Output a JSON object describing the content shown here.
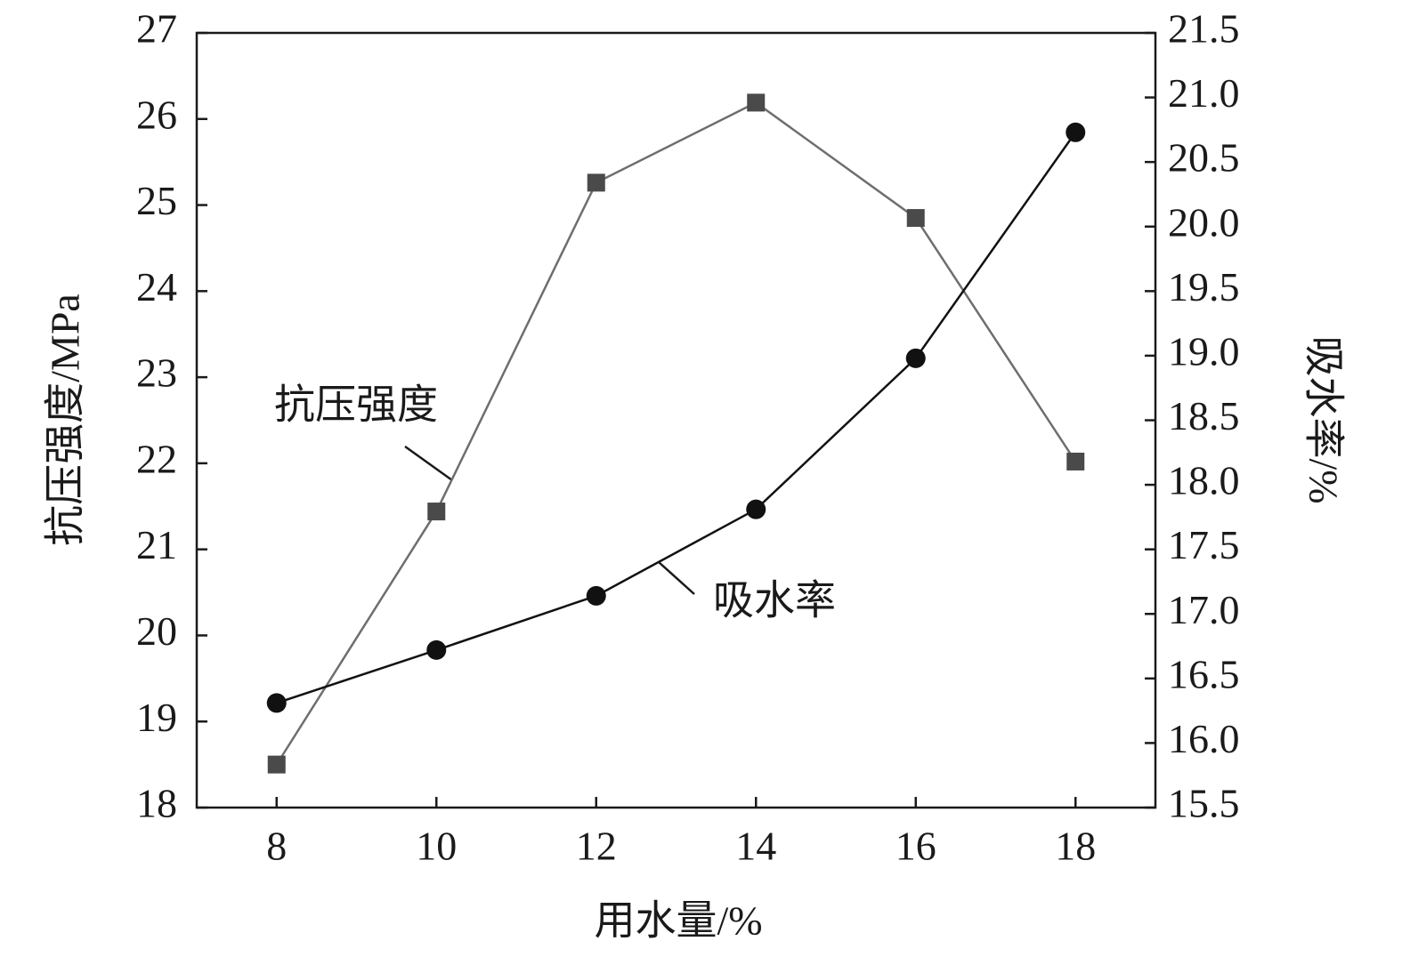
{
  "chart_data": {
    "type": "line",
    "x_label": "用水量/%",
    "y_label": "抗压强度/MPa",
    "y2_label": "吸水率/%",
    "x": [
      8,
      10,
      12,
      14,
      16,
      18
    ],
    "xlim": [
      7,
      19
    ],
    "xticks": [
      8,
      10,
      12,
      14,
      16,
      18
    ],
    "ylim": [
      18,
      27
    ],
    "yticks": [
      18,
      19,
      20,
      21,
      22,
      23,
      24,
      25,
      26,
      27
    ],
    "y2lim": [
      15.5,
      21.5
    ],
    "y2ticks": [
      15.5,
      {
        "value": 16,
        "label": "16.0"
      },
      16.5,
      {
        "value": 17,
        "label": "17.0"
      },
      17.5,
      {
        "value": 18,
        "label": "18.0"
      },
      18.5,
      {
        "value": 19,
        "label": "19.0"
      },
      19.5,
      {
        "value": 20,
        "label": "20.0"
      },
      20.5,
      {
        "value": 21,
        "label": "21.0"
      },
      21.5
    ],
    "series": [
      {
        "name": "抗压强度",
        "color": "#4a4a4a",
        "marker": "square",
        "values": [
          18.5,
          21.44,
          25.26,
          26.19,
          24.85,
          22.02
        ]
      },
      {
        "name": "吸水率",
        "color": "#111111",
        "marker": "circle",
        "axis": "y2",
        "values": [
          16.31,
          16.72,
          17.14,
          17.81,
          18.98,
          20.73
        ]
      }
    ]
  }
}
